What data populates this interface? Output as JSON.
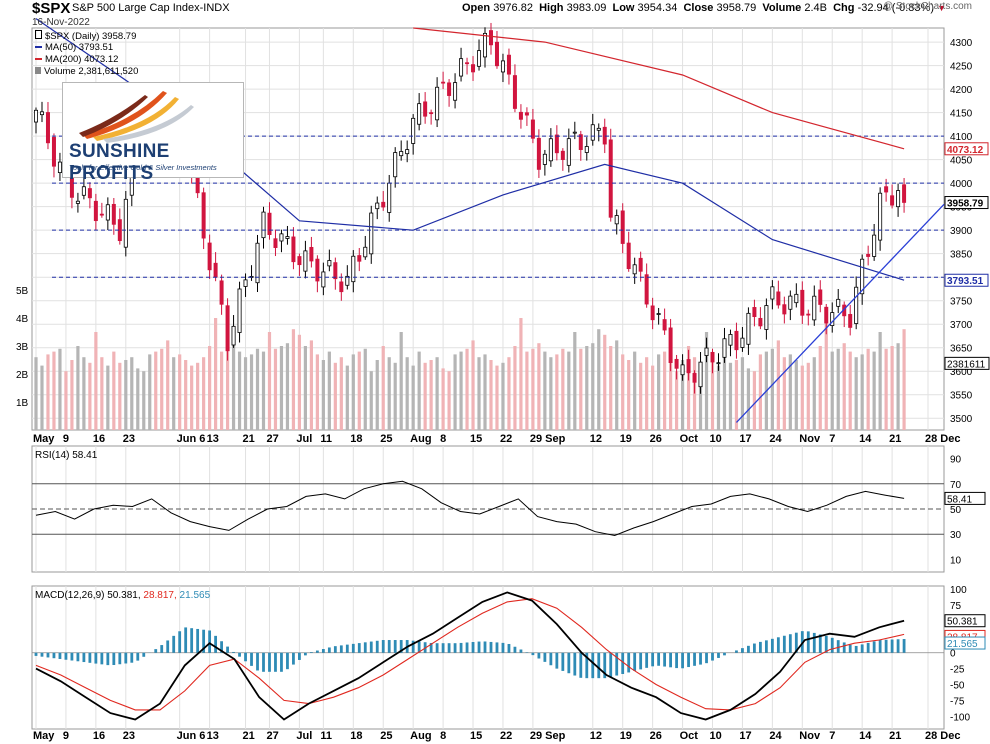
{
  "header": {
    "symbol": "$SPX",
    "description": "S&P 500 Large Cap Index",
    "exchange": "INDX",
    "date": "16-Nov-2022",
    "open_label": "Open",
    "open": "3976.82",
    "high_label": "High",
    "high": "3983.09",
    "low_label": "Low",
    "low": "3954.34",
    "close_label": "Close",
    "close": "3958.79",
    "volume_label": "Volume",
    "volume": "2.4B",
    "chg_label": "Chg",
    "chg": "-32.94 (-0.83%)",
    "watermark": "@ StockCharts.com"
  },
  "legend": {
    "price": "$SPX (Daily) 3958.79",
    "ma50": "MA(50) 3793.51",
    "ma200": "MA(200) 4073.12",
    "volume": "Volume 2,381,611,520"
  },
  "logo": {
    "brand": "SUNSHINE PROFITS",
    "tagline": "Tools for Effective Gold & Silver Investments"
  },
  "colors": {
    "up": "#ffffff",
    "down": "#d1153f",
    "ma50": "#1f2ea6",
    "ma200": "#d3262e",
    "trendline": "#2a3fd6",
    "macd": "#000000",
    "signal": "#e0281f",
    "histogram": "#2e8bb5",
    "rsi": "#000000",
    "vol_up": "#b5b5b5",
    "vol_down": "#f0b3b6",
    "grid": "#e1e1e1"
  },
  "chart_data": [
    {
      "type": "candlestick",
      "title": "$SPX (Daily)",
      "ylim": [
        3475,
        4330
      ],
      "yticks": [
        "4300",
        "4250",
        "4200",
        "4150",
        "4100",
        "4050",
        "4000",
        "3950",
        "3900",
        "3850",
        "3800",
        "3750",
        "3700",
        "3650",
        "3600",
        "3550",
        "3500"
      ],
      "xaxis_labels": [
        "May",
        "9",
        "16",
        "23",
        "Jun 6",
        "13",
        "21",
        "27",
        "Jul",
        "11",
        "18",
        "25",
        "Aug",
        "8",
        "15",
        "22",
        "29 Sep",
        "12",
        "19",
        "26",
        "Oct",
        "10",
        "17",
        "24",
        "Nov",
        "7",
        "14",
        "21",
        "28 Dec"
      ],
      "last_close": 3958.79,
      "price_labels": {
        "ma200": "4073.12",
        "last": "3958.79",
        "ma50": "3793.51"
      },
      "reference_lines": [
        4100,
        4000,
        3900,
        3800
      ],
      "ohlc_sampled": [
        {
          "x": "May 2",
          "o": 4130,
          "h": 4170,
          "l": 4060,
          "c": 4155
        },
        {
          "x": "May 9",
          "o": 4120,
          "h": 4125,
          "l": 3980,
          "c": 4000
        },
        {
          "x": "May 20",
          "o": 3920,
          "h": 3960,
          "l": 3810,
          "c": 3905
        },
        {
          "x": "May 27",
          "o": 3985,
          "h": 4160,
          "l": 3980,
          "c": 4158
        },
        {
          "x": "Jun 6",
          "o": 4125,
          "h": 4160,
          "l": 4110,
          "c": 4125
        },
        {
          "x": "Jun 16",
          "o": 3750,
          "h": 3780,
          "l": 3640,
          "c": 3667
        },
        {
          "x": "Jun 24",
          "o": 3800,
          "h": 3915,
          "l": 3795,
          "c": 3911
        },
        {
          "x": "Jul 5",
          "o": 3790,
          "h": 3840,
          "l": 3740,
          "c": 3831
        },
        {
          "x": "Jul 14",
          "o": 3760,
          "h": 3800,
          "l": 3720,
          "c": 3790
        },
        {
          "x": "Jul 29",
          "o": 4070,
          "h": 4140,
          "l": 4060,
          "c": 4130
        },
        {
          "x": "Aug 16",
          "o": 4290,
          "h": 4325,
          "l": 4270,
          "c": 4305
        },
        {
          "x": "Aug 26",
          "o": 4200,
          "h": 4205,
          "l": 4057,
          "c": 4057
        },
        {
          "x": "Sep 12",
          "o": 4080,
          "h": 4120,
          "l": 4060,
          "c": 4110
        },
        {
          "x": "Sep 13",
          "o": 4040,
          "h": 4040,
          "l": 3930,
          "c": 3932
        },
        {
          "x": "Sep 30",
          "o": 3650,
          "h": 3680,
          "l": 3583,
          "c": 3586
        },
        {
          "x": "Oct 13",
          "o": 3520,
          "h": 3670,
          "l": 3491,
          "c": 3669
        },
        {
          "x": "Oct 21",
          "o": 3660,
          "h": 3752,
          "l": 3650,
          "c": 3752
        },
        {
          "x": "Nov 3",
          "o": 3735,
          "h": 3750,
          "l": 3700,
          "c": 3720
        },
        {
          "x": "Nov 10",
          "o": 3860,
          "h": 3960,
          "l": 3850,
          "c": 3956
        },
        {
          "x": "Nov 15",
          "o": 3992,
          "h": 4028,
          "l": 3973,
          "c": 3991
        },
        {
          "x": "Nov 16",
          "o": 3977,
          "h": 3983,
          "l": 3954,
          "c": 3959
        }
      ],
      "ma50_path": [
        {
          "x": "May 2",
          "y": 4350
        },
        {
          "x": "Jun 6",
          "y": 4140
        },
        {
          "x": "Jul 5",
          "y": 3920
        },
        {
          "x": "Aug 1",
          "y": 3900
        },
        {
          "x": "Aug 22",
          "y": 3975
        },
        {
          "x": "Sep 12",
          "y": 4040
        },
        {
          "x": "Oct 3",
          "y": 4000
        },
        {
          "x": "Oct 24",
          "y": 3880
        },
        {
          "x": "Nov 16",
          "y": 3793.51
        }
      ],
      "ma200_path": [
        {
          "x": "Aug 1",
          "y": 4330
        },
        {
          "x": "Sep 1",
          "y": 4300
        },
        {
          "x": "Oct 3",
          "y": 4230
        },
        {
          "x": "Oct 24",
          "y": 4150
        },
        {
          "x": "Nov 16",
          "y": 4073.12
        }
      ],
      "trendline": {
        "from": {
          "x": "Oct 13",
          "y": 3491
        },
        "to": {
          "x": "Dec 1",
          "y": 3955
        }
      }
    },
    {
      "type": "bar",
      "title": "Volume",
      "ylim": [
        0,
        5
      ],
      "yticks": [
        "5B",
        "4B",
        "3B",
        "2B",
        "1B"
      ],
      "last_value": "2381611",
      "values_billions_sampled": [
        2.6,
        2.3,
        2.7,
        2.8,
        2.9,
        2.1,
        2.5,
        3.0,
        2.6,
        2.4,
        3.5,
        2.6,
        2.3,
        2.8,
        2.4,
        2.5,
        2.6,
        2.2,
        2.1,
        2.7,
        2.8,
        2.9,
        3.2,
        2.6,
        2.7,
        2.5,
        2.3,
        2.4,
        2.6,
        3.0,
        4.0,
        2.8,
        2.9,
        3.1,
        2.8,
        2.6,
        2.7,
        2.9,
        2.8,
        3.5,
        2.9,
        3.0,
        3.1,
        3.6,
        3.4,
        3.0,
        3.2,
        2.7,
        2.5,
        2.8,
        2.4
      ]
    },
    {
      "type": "line",
      "title": "RSI(14)",
      "last_value": 58.41,
      "ylim": [
        0,
        100
      ],
      "yticks": [
        "90",
        "70",
        "50",
        "30",
        "10"
      ],
      "reference_levels": [
        70,
        50,
        30
      ],
      "values_sampled": [
        45,
        48,
        42,
        50,
        53,
        52,
        58,
        47,
        40,
        36,
        33,
        42,
        50,
        52,
        60,
        62,
        58,
        66,
        70,
        72,
        66,
        55,
        48,
        46,
        52,
        58,
        44,
        40,
        38,
        32,
        29,
        35,
        40,
        46,
        52,
        54,
        60,
        62,
        58,
        52,
        48,
        53,
        60,
        64,
        61,
        58.41
      ]
    },
    {
      "type": "line",
      "title": "MACD(12,26,9)",
      "ylim": [
        -120,
        105
      ],
      "yticks": [
        "100",
        "75",
        "50",
        "25",
        "0",
        "-25",
        "-50",
        "-75",
        "-100"
      ],
      "series": [
        {
          "name": "MACD",
          "last": 50.381,
          "values_sampled": [
            -25,
            -45,
            -70,
            -95,
            -105,
            -80,
            -20,
            15,
            -10,
            -70,
            -105,
            -80,
            -60,
            -40,
            -15,
            10,
            30,
            55,
            80,
            95,
            82,
            45,
            0,
            -35,
            -55,
            -70,
            -95,
            -105,
            -90,
            -65,
            -30,
            20,
            30,
            25,
            40,
            50.381
          ]
        },
        {
          "name": "Signal",
          "last": 28.817,
          "values_sampled": [
            -20,
            -35,
            -55,
            -75,
            -90,
            -90,
            -60,
            -20,
            -10,
            -40,
            -75,
            -80,
            -70,
            -55,
            -35,
            -10,
            15,
            40,
            62,
            80,
            85,
            70,
            40,
            5,
            -25,
            -50,
            -70,
            -88,
            -90,
            -80,
            -55,
            -15,
            5,
            15,
            20,
            28.817
          ]
        },
        {
          "name": "Histogram",
          "last": 21.565
        }
      ]
    }
  ]
}
